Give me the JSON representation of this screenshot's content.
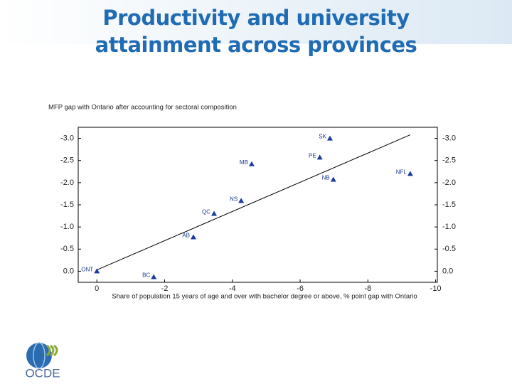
{
  "chart_data": {
    "type": "scatter",
    "title": "Productivity and university attainment across provinces",
    "y_label": "MFP gap with Ontario after accounting for sectoral composition",
    "x_label": "Share of population 15 years of age and over with bachelor degree or above,  % point gap with Ontario",
    "categories": [
      "ONT",
      "BC",
      "AB",
      "QC",
      "NS",
      "MB",
      "PE",
      "SK",
      "NB",
      "NFL"
    ],
    "x": [
      0,
      -1.68,
      -2.85,
      -3.46,
      -4.26,
      -4.57,
      -6.58,
      -6.88,
      -6.98,
      -9.25
    ],
    "values": [
      0,
      0.13,
      -0.77,
      -1.3,
      -1.59,
      -2.42,
      -2.57,
      -3.0,
      -2.07,
      -2.2
    ],
    "color": "#1a3a9c",
    "trendline": {
      "x": [
        0,
        -9.25
      ],
      "y": [
        -0.03,
        -3.08
      ]
    },
    "xlim": [
      0.55,
      -10.05
    ],
    "ylim": [
      0.25,
      -3.25
    ],
    "xticks": [
      0,
      -2,
      -4,
      -6,
      -8,
      -10
    ],
    "yticks": [
      {
        "value": -3.0,
        "label": "-3.0"
      },
      {
        "value": -2.5,
        "label": "-2.5"
      },
      {
        "value": -2.0,
        "label": "-2.0"
      },
      {
        "value": -1.5,
        "label": "-1.5"
      },
      {
        "value": -1.0,
        "label": "-1.0"
      },
      {
        "value": -0.5,
        "label": "-0.5"
      },
      {
        "value": 0.0,
        "label": "0.0"
      }
    ]
  },
  "logo": "OCDE"
}
